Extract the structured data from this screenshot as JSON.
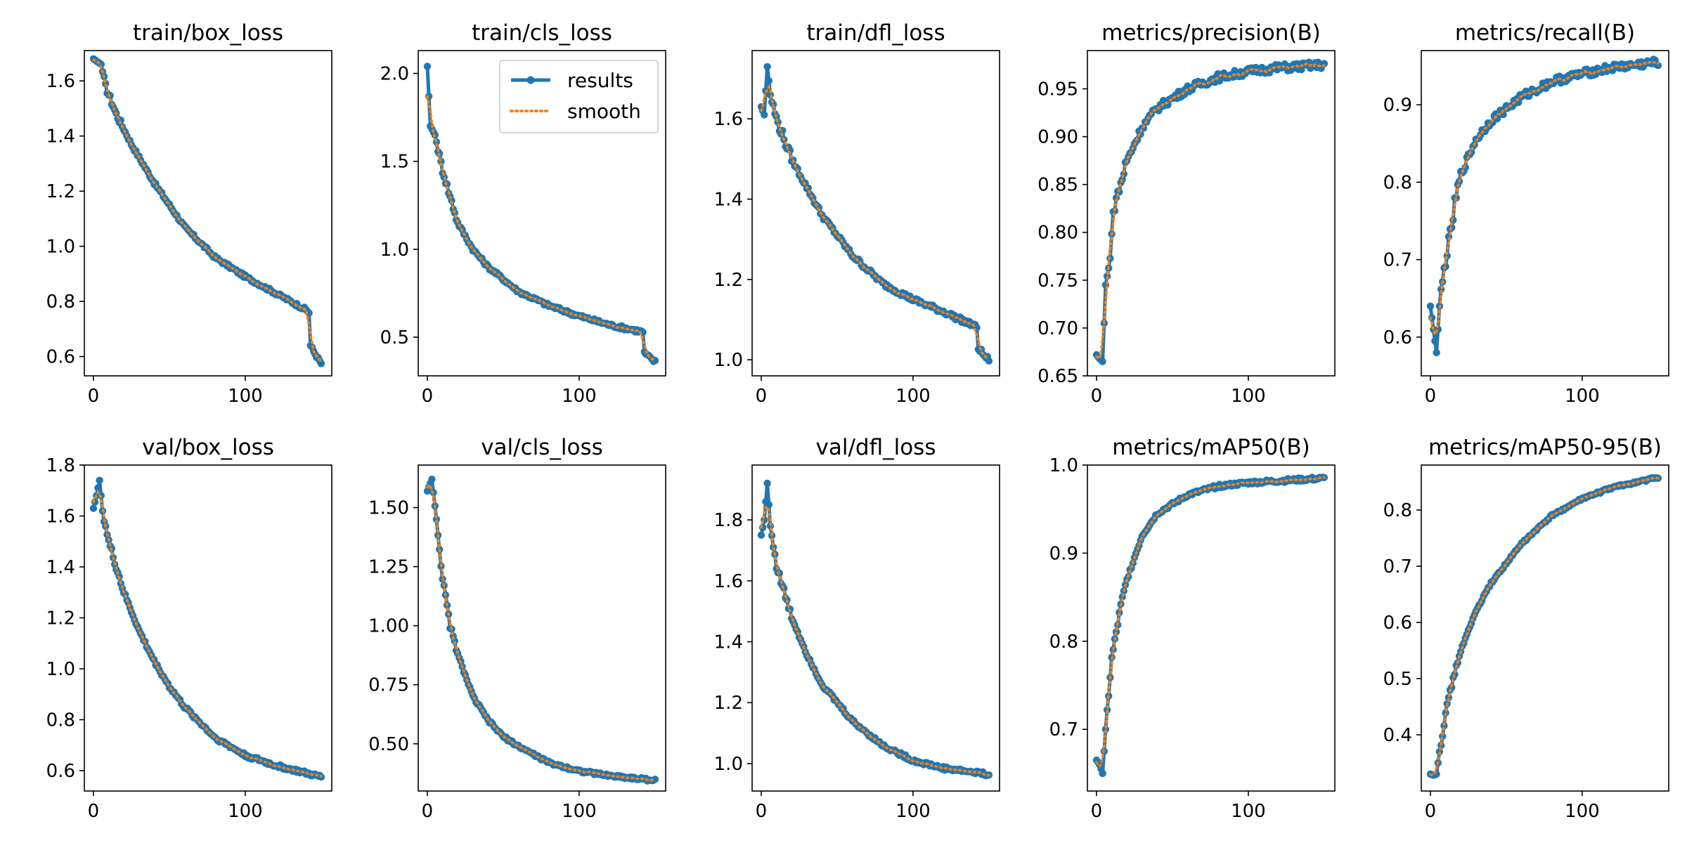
{
  "colors": {
    "results": "#1f77b4",
    "smooth": "#ff7f0e",
    "axis": "#000000",
    "background": "#ffffff"
  },
  "legend": {
    "placement": "upper-right of train/cls_loss",
    "entries": [
      "results",
      "smooth"
    ]
  },
  "chart_data": [
    {
      "type": "line",
      "title": "train/box_loss",
      "xlim": [
        -6,
        157
      ],
      "ylim": [
        0.53,
        1.71
      ],
      "xticks": [
        0,
        100
      ],
      "yticks": [
        0.6,
        0.8,
        1.0,
        1.2,
        1.4,
        1.6
      ],
      "ytick_labels": [
        "0.6",
        "0.8",
        "1.0",
        "1.2",
        "1.4",
        "1.6"
      ],
      "curve": {
        "start": 1.68,
        "end": 0.575,
        "knots": [
          [
            0,
            1.68
          ],
          [
            5,
            1.66
          ],
          [
            8,
            1.58
          ],
          [
            15,
            1.48
          ],
          [
            25,
            1.37
          ],
          [
            40,
            1.23
          ],
          [
            60,
            1.07
          ],
          [
            80,
            0.96
          ],
          [
            100,
            0.89
          ],
          [
            120,
            0.83
          ],
          [
            140,
            0.77
          ],
          [
            142,
            0.76
          ],
          [
            143,
            0.64
          ],
          [
            146,
            0.61
          ],
          [
            150,
            0.575
          ]
        ]
      },
      "noise": 0.006
    },
    {
      "type": "line",
      "title": "train/cls_loss",
      "xlim": [
        -6,
        157
      ],
      "ylim": [
        0.28,
        2.13
      ],
      "xticks": [
        0,
        100
      ],
      "yticks": [
        0.5,
        1.0,
        1.5,
        2.0
      ],
      "ytick_labels": [
        "0.5",
        "1.0",
        "1.5",
        "2.0"
      ],
      "curve": {
        "start": 2.04,
        "end": 0.36,
        "knots": [
          [
            0,
            2.04
          ],
          [
            2,
            1.7
          ],
          [
            5,
            1.65
          ],
          [
            10,
            1.45
          ],
          [
            20,
            1.15
          ],
          [
            30,
            1.0
          ],
          [
            40,
            0.9
          ],
          [
            60,
            0.76
          ],
          [
            80,
            0.68
          ],
          [
            100,
            0.62
          ],
          [
            120,
            0.57
          ],
          [
            142,
            0.53
          ],
          [
            143,
            0.41
          ],
          [
            147,
            0.38
          ],
          [
            150,
            0.36
          ]
        ]
      },
      "noise": 0.01
    },
    {
      "type": "line",
      "title": "train/dfl_loss",
      "xlim": [
        -6,
        157
      ],
      "ylim": [
        0.96,
        1.77
      ],
      "xticks": [
        0,
        100
      ],
      "yticks": [
        1.0,
        1.2,
        1.4,
        1.6
      ],
      "ytick_labels": [
        "1.0",
        "1.2",
        "1.4",
        "1.6"
      ],
      "curve": {
        "start": 1.63,
        "end": 1.0,
        "knots": [
          [
            0,
            1.63
          ],
          [
            2,
            1.61
          ],
          [
            4,
            1.73
          ],
          [
            6,
            1.66
          ],
          [
            10,
            1.6
          ],
          [
            20,
            1.5
          ],
          [
            40,
            1.36
          ],
          [
            60,
            1.26
          ],
          [
            80,
            1.19
          ],
          [
            100,
            1.15
          ],
          [
            120,
            1.12
          ],
          [
            140,
            1.085
          ],
          [
            142,
            1.08
          ],
          [
            143,
            1.03
          ],
          [
            147,
            1.01
          ],
          [
            150,
            1.0
          ]
        ]
      },
      "noise": 0.006
    },
    {
      "type": "line",
      "title": "metrics/precision(B)",
      "xlim": [
        -6,
        157
      ],
      "ylim": [
        0.65,
        0.99
      ],
      "xticks": [
        0,
        100
      ],
      "yticks": [
        0.65,
        0.7,
        0.75,
        0.8,
        0.85,
        0.9,
        0.95
      ],
      "ytick_labels": [
        "0.65",
        "0.70",
        "0.75",
        "0.80",
        "0.85",
        "0.90",
        "0.95"
      ],
      "curve": {
        "start": 0.672,
        "end": 0.975,
        "knots": [
          [
            0,
            0.672
          ],
          [
            2,
            0.668
          ],
          [
            4,
            0.665
          ],
          [
            6,
            0.745
          ],
          [
            8,
            0.76
          ],
          [
            10,
            0.8
          ],
          [
            12,
            0.83
          ],
          [
            15,
            0.845
          ],
          [
            20,
            0.875
          ],
          [
            30,
            0.91
          ],
          [
            40,
            0.93
          ],
          [
            60,
            0.95
          ],
          [
            80,
            0.962
          ],
          [
            100,
            0.968
          ],
          [
            120,
            0.972
          ],
          [
            150,
            0.975
          ]
        ]
      },
      "noise": 0.004
    },
    {
      "type": "line",
      "title": "metrics/recall(B)",
      "xlim": [
        -6,
        157
      ],
      "ylim": [
        0.55,
        0.97
      ],
      "xticks": [
        0,
        100
      ],
      "yticks": [
        0.6,
        0.7,
        0.8,
        0.9
      ],
      "ytick_labels": [
        "0.6",
        "0.7",
        "0.8",
        "0.9"
      ],
      "curve": {
        "start": 0.64,
        "end": 0.955,
        "knots": [
          [
            0,
            0.64
          ],
          [
            2,
            0.61
          ],
          [
            4,
            0.58
          ],
          [
            6,
            0.64
          ],
          [
            8,
            0.67
          ],
          [
            10,
            0.7
          ],
          [
            13,
            0.73
          ],
          [
            16,
            0.77
          ],
          [
            20,
            0.81
          ],
          [
            30,
            0.855
          ],
          [
            40,
            0.88
          ],
          [
            60,
            0.91
          ],
          [
            80,
            0.93
          ],
          [
            100,
            0.94
          ],
          [
            120,
            0.948
          ],
          [
            150,
            0.955
          ]
        ]
      },
      "noise": 0.005
    },
    {
      "type": "line",
      "title": "val/box_loss",
      "xlim": [
        -6,
        157
      ],
      "ylim": [
        0.52,
        1.8
      ],
      "xticks": [
        0,
        100
      ],
      "yticks": [
        0.6,
        0.8,
        1.0,
        1.2,
        1.4,
        1.6,
        1.8
      ],
      "ytick_labels": [
        "0.6",
        "0.8",
        "1.0",
        "1.2",
        "1.4",
        "1.6",
        "1.8"
      ],
      "curve": {
        "start": 1.63,
        "end": 0.575,
        "knots": [
          [
            0,
            1.63
          ],
          [
            2,
            1.68
          ],
          [
            4,
            1.74
          ],
          [
            6,
            1.62
          ],
          [
            10,
            1.5
          ],
          [
            20,
            1.3
          ],
          [
            30,
            1.15
          ],
          [
            40,
            1.03
          ],
          [
            50,
            0.93
          ],
          [
            60,
            0.85
          ],
          [
            80,
            0.73
          ],
          [
            100,
            0.66
          ],
          [
            120,
            0.62
          ],
          [
            150,
            0.575
          ]
        ]
      },
      "noise": 0.007
    },
    {
      "type": "line",
      "title": "val/cls_loss",
      "xlim": [
        -6,
        157
      ],
      "ylim": [
        0.3,
        1.68
      ],
      "xticks": [
        0,
        100
      ],
      "yticks": [
        0.5,
        0.75,
        1.0,
        1.25,
        1.5
      ],
      "ytick_labels": [
        "0.50",
        "0.75",
        "1.00",
        "1.25",
        "1.50"
      ],
      "curve": {
        "start": 1.57,
        "end": 0.345,
        "knots": [
          [
            0,
            1.57
          ],
          [
            3,
            1.62
          ],
          [
            6,
            1.45
          ],
          [
            10,
            1.2
          ],
          [
            15,
            1.0
          ],
          [
            20,
            0.88
          ],
          [
            30,
            0.7
          ],
          [
            40,
            0.6
          ],
          [
            50,
            0.53
          ],
          [
            60,
            0.49
          ],
          [
            80,
            0.42
          ],
          [
            100,
            0.385
          ],
          [
            120,
            0.365
          ],
          [
            150,
            0.345
          ]
        ]
      },
      "noise": 0.006
    },
    {
      "type": "line",
      "title": "val/dfl_loss",
      "xlim": [
        -6,
        157
      ],
      "ylim": [
        0.91,
        1.98
      ],
      "xticks": [
        0,
        100
      ],
      "yticks": [
        1.0,
        1.2,
        1.4,
        1.6,
        1.8
      ],
      "ytick_labels": [
        "1.0",
        "1.2",
        "1.4",
        "1.6",
        "1.8"
      ],
      "curve": {
        "start": 1.75,
        "end": 0.965,
        "knots": [
          [
            0,
            1.75
          ],
          [
            2,
            1.8
          ],
          [
            4,
            1.92
          ],
          [
            6,
            1.78
          ],
          [
            10,
            1.65
          ],
          [
            20,
            1.48
          ],
          [
            30,
            1.36
          ],
          [
            40,
            1.26
          ],
          [
            60,
            1.14
          ],
          [
            80,
            1.06
          ],
          [
            100,
            1.01
          ],
          [
            120,
            0.985
          ],
          [
            150,
            0.965
          ]
        ]
      },
      "noise": 0.006
    },
    {
      "type": "line",
      "title": "metrics/mAP50(B)",
      "xlim": [
        -6,
        157
      ],
      "ylim": [
        0.63,
        1.0
      ],
      "xticks": [
        0,
        100
      ],
      "yticks": [
        0.7,
        0.8,
        0.9,
        1.0
      ],
      "ytick_labels": [
        "0.7",
        "0.8",
        "0.9",
        "1.0"
      ],
      "curve": {
        "start": 0.665,
        "end": 0.985,
        "knots": [
          [
            0,
            0.665
          ],
          [
            2,
            0.66
          ],
          [
            4,
            0.65
          ],
          [
            6,
            0.7
          ],
          [
            8,
            0.74
          ],
          [
            10,
            0.78
          ],
          [
            13,
            0.81
          ],
          [
            16,
            0.84
          ],
          [
            20,
            0.87
          ],
          [
            30,
            0.92
          ],
          [
            40,
            0.945
          ],
          [
            60,
            0.966
          ],
          [
            80,
            0.976
          ],
          [
            100,
            0.98
          ],
          [
            150,
            0.985
          ]
        ]
      },
      "noise": 0.002
    },
    {
      "type": "line",
      "title": "metrics/mAP50-95(B)",
      "xlim": [
        -6,
        157
      ],
      "ylim": [
        0.3,
        0.88
      ],
      "xticks": [
        0,
        100
      ],
      "yticks": [
        0.4,
        0.5,
        0.6,
        0.7,
        0.8
      ],
      "ytick_labels": [
        "0.4",
        "0.5",
        "0.6",
        "0.7",
        "0.8"
      ],
      "curve": {
        "start": 0.33,
        "end": 0.858,
        "knots": [
          [
            0,
            0.33
          ],
          [
            2,
            0.328
          ],
          [
            4,
            0.33
          ],
          [
            6,
            0.37
          ],
          [
            8,
            0.4
          ],
          [
            10,
            0.44
          ],
          [
            15,
            0.5
          ],
          [
            20,
            0.55
          ],
          [
            30,
            0.62
          ],
          [
            40,
            0.67
          ],
          [
            60,
            0.74
          ],
          [
            80,
            0.79
          ],
          [
            100,
            0.82
          ],
          [
            120,
            0.84
          ],
          [
            150,
            0.858
          ]
        ]
      },
      "noise": 0.002
    }
  ]
}
